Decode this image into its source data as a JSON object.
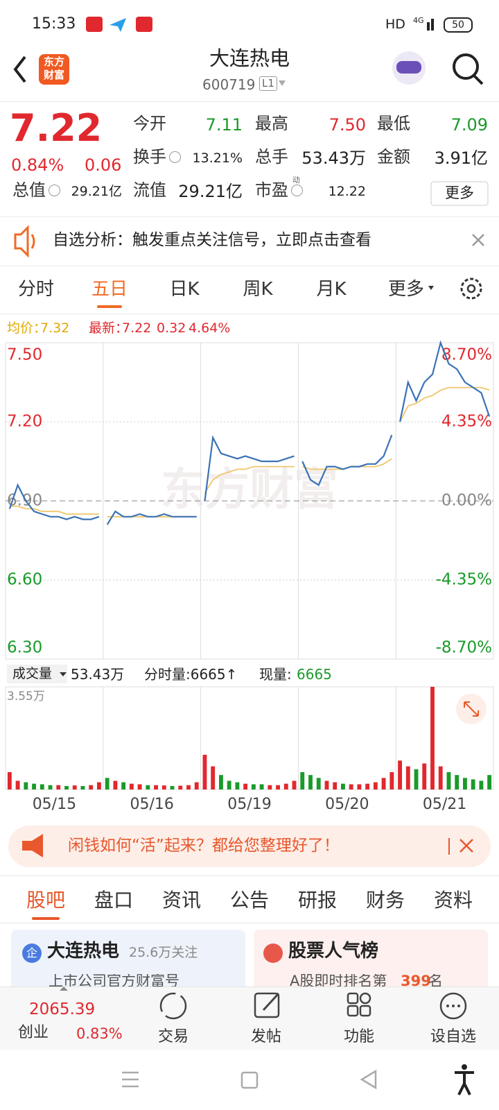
{
  "status_bar": {
    "time": "15:33",
    "network": "HD",
    "signal": "4G",
    "battery": "50"
  },
  "header": {
    "logo": [
      "东方",
      "财富"
    ],
    "title": "大连热电",
    "code": "600719",
    "badge": "L1"
  },
  "quote": {
    "price": "7.22",
    "change_pct": "0.84%",
    "change": "0.06",
    "more": "更多",
    "fields": [
      {
        "label": "今开",
        "value": "7.11",
        "color": "#1a9a2a"
      },
      {
        "label": "最高",
        "value": "7.50",
        "color": "#e0282e"
      },
      {
        "label": "最低",
        "value": "7.09",
        "color": "#1a9a2a"
      },
      {
        "label": "换手",
        "value": "13.21%",
        "color": "#222222",
        "icon": true
      },
      {
        "label": "总手",
        "value": "53.43万",
        "color": "#222222"
      },
      {
        "label": "金额",
        "value": "3.91亿",
        "color": "#222222"
      },
      {
        "label": "总值",
        "value": "29.21亿",
        "color": "#222222",
        "icon": true
      },
      {
        "label": "流值",
        "value": "29.21亿",
        "color": "#222222"
      },
      {
        "label": "市盈",
        "value": "12.22",
        "color": "#222222",
        "icon": true,
        "sup": "动"
      }
    ]
  },
  "notice": {
    "text": "自选分析：触发重点关注信号，立即点击查看"
  },
  "tabs": {
    "items": [
      "分时",
      "五日",
      "日K",
      "周K",
      "月K",
      "更多"
    ],
    "active": 1
  },
  "legend": {
    "avg_label": "均价：",
    "avg": "7.32",
    "latest_label": "最新：",
    "latest": "7.22",
    "change": "0.32",
    "change_pct": "4.64%"
  },
  "price_chart": {
    "type": "line",
    "watermark": "东方财富",
    "base": 6.9,
    "ylim": [
      6.3,
      7.5
    ],
    "yticks": [
      {
        "value": 7.5,
        "label": "7.50"
      },
      {
        "value": 7.2,
        "label": "7.20"
      },
      {
        "value": 6.9,
        "label": "6.90"
      },
      {
        "value": 6.6,
        "label": "6.60"
      },
      {
        "value": 6.3,
        "label": "6.30"
      }
    ],
    "y2lim": [
      -8.7,
      8.7
    ],
    "y2ticks": [
      {
        "value": 8.7,
        "label": "8.70%"
      },
      {
        "value": 4.35,
        "label": "4.35%"
      },
      {
        "value": 0,
        "label": "0.00%"
      },
      {
        "value": -4.35,
        "label": "-4.35%"
      },
      {
        "value": -8.7,
        "label": "-8.70%"
      }
    ],
    "price_color": "#3a72b5",
    "avg_color": "#efc66b",
    "price": [
      [
        6.87,
        6.96,
        6.9,
        6.86,
        6.85,
        6.84,
        6.84,
        6.83,
        6.84,
        6.83,
        6.83,
        6.84
      ],
      [
        6.81,
        6.86,
        6.84,
        6.84,
        6.85,
        6.84,
        6.84,
        6.85,
        6.84,
        6.84,
        6.84,
        6.84
      ],
      [
        6.9,
        7.14,
        7.08,
        7.07,
        7.06,
        7.07,
        7.06,
        7.05,
        7.05,
        7.05,
        7.06,
        7.07
      ],
      [
        7.05,
        6.98,
        6.96,
        7.03,
        7.03,
        7.02,
        7.03,
        7.03,
        7.04,
        7.04,
        7.07,
        7.15
      ],
      [
        7.2,
        7.35,
        7.28,
        7.35,
        7.38,
        7.5,
        7.42,
        7.4,
        7.35,
        7.33,
        7.31,
        7.22
      ]
    ],
    "avg": [
      [
        6.88,
        6.88,
        6.87,
        6.87,
        6.86,
        6.86,
        6.86,
        6.85,
        6.85,
        6.85,
        6.85,
        6.85
      ],
      [
        6.84,
        6.84,
        6.84,
        6.84,
        6.84,
        6.84,
        6.84,
        6.84,
        6.84,
        6.84,
        6.84,
        6.84
      ],
      [
        6.93,
        6.98,
        7.0,
        7.01,
        7.02,
        7.02,
        7.03,
        7.03,
        7.03,
        7.03,
        7.03,
        7.03
      ],
      [
        7.03,
        7.02,
        7.02,
        7.02,
        7.02,
        7.02,
        7.03,
        7.03,
        7.03,
        7.03,
        7.04,
        7.06
      ],
      [
        7.2,
        7.26,
        7.27,
        7.29,
        7.3,
        7.32,
        7.33,
        7.33,
        7.33,
        7.33,
        7.33,
        7.32
      ]
    ]
  },
  "volume_chart": {
    "type": "bar",
    "title": "成交量",
    "total": "53.43万",
    "tick_volume": "分时量:6665↑",
    "current_label": "现量:",
    "current": "6665",
    "ylim": [
      0,
      35500
    ],
    "yticks": [
      {
        "value": 35500,
        "label": "3.55万"
      }
    ],
    "up_color": "#e0282e",
    "down_color": "#1a9a2a",
    "categories": [
      "05/15",
      "05/16",
      "05/19",
      "05/20",
      "05/21"
    ],
    "values": [
      [
        6000,
        3000,
        2500,
        2000,
        1800,
        1500,
        1500,
        1200,
        1400,
        1200,
        1500,
        2500
      ],
      [
        4000,
        3000,
        2500,
        2000,
        1800,
        1500,
        1500,
        1400,
        1200,
        1300,
        1500,
        2500
      ],
      [
        12000,
        8000,
        5000,
        3000,
        2500,
        2000,
        1800,
        1800,
        1500,
        1500,
        2000,
        3000
      ],
      [
        6000,
        5000,
        4000,
        3000,
        2500,
        2000,
        1800,
        1800,
        2000,
        2500,
        4000,
        6000
      ],
      [
        10000,
        8000,
        7000,
        9000,
        35500,
        8000,
        6000,
        5000,
        4000,
        3500,
        3000,
        5000
      ]
    ]
  },
  "banner": {
    "text": "闲钱如何“活”起来？都给您整理好了！"
  },
  "sub_tabs": {
    "items": [
      "股吧",
      "盘口",
      "资讯",
      "公告",
      "研报",
      "财务",
      "资料"
    ],
    "active": 0
  },
  "cards": [
    {
      "badge": "企",
      "title": "大连热电",
      "meta": "25.6万关注",
      "subtitle": "上市公司官方财富号"
    },
    {
      "title": "股票人气榜",
      "subtitle_prefix": "A股即时排名第",
      "rank": "399",
      "subtitle_suffix": "名"
    }
  ],
  "bottom_nav": {
    "index_value": "2065.39",
    "index_name": "创业",
    "index_change": "0.83%",
    "items": [
      "交易",
      "发帖",
      "功能",
      "设自选"
    ]
  }
}
